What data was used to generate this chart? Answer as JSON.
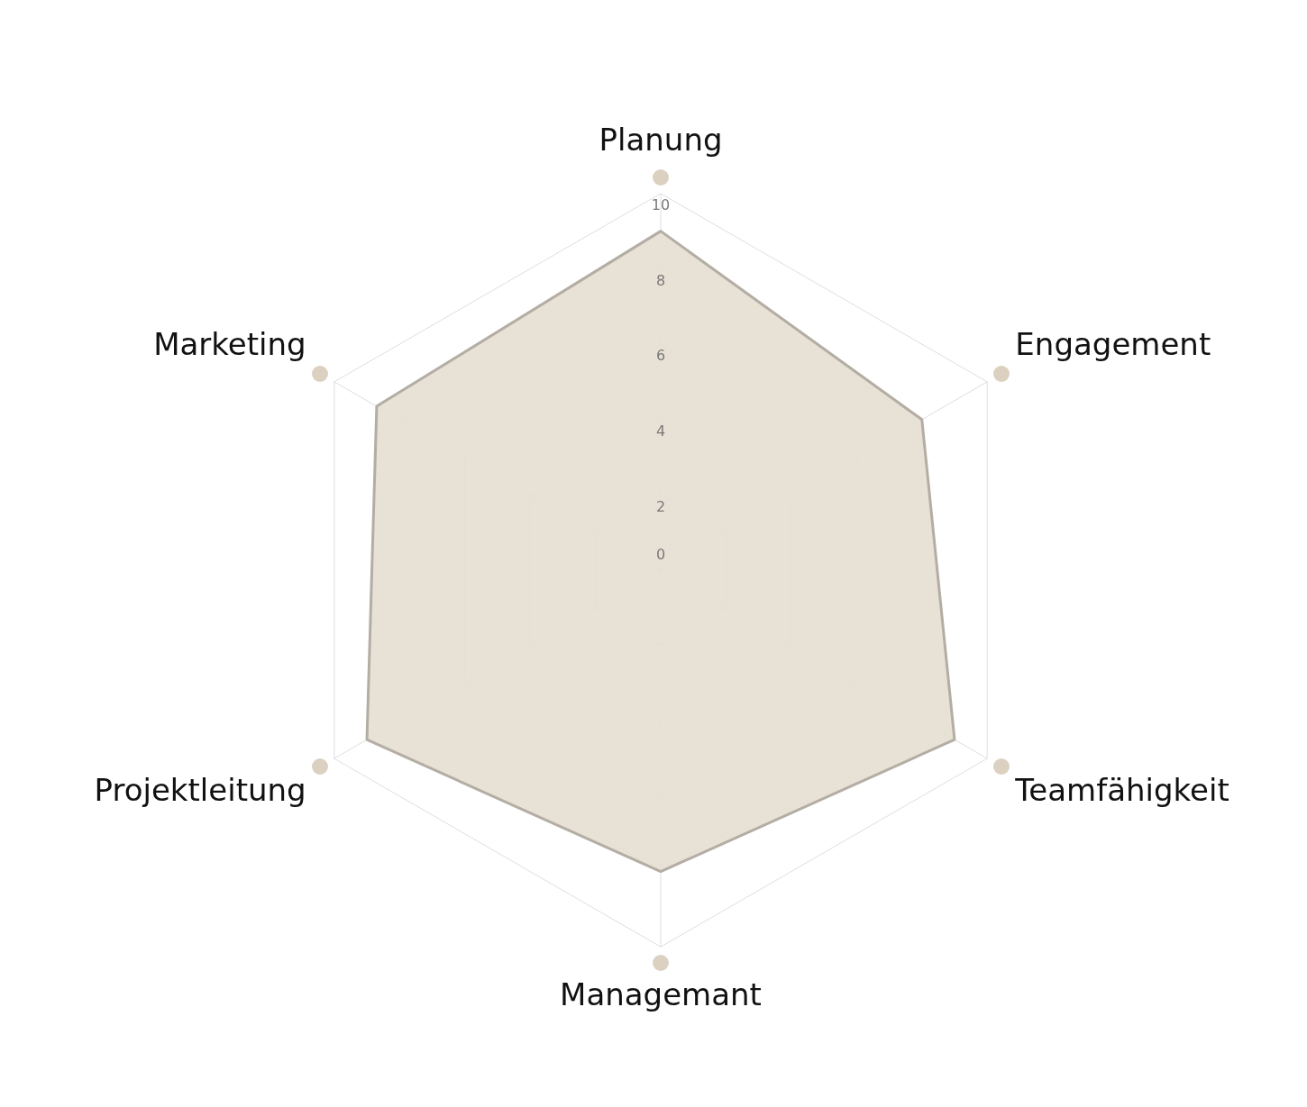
{
  "chart_data": {
    "type": "radar",
    "categories": [
      "Planung",
      "Engagement",
      "Teamfähigkeit",
      "Managemant",
      "Projektleitung",
      "Marketing"
    ],
    "series": [
      {
        "color": "#e6ded2",
        "values": [
          9,
          8,
          9,
          8,
          9,
          8.7
        ]
      }
    ],
    "ylim": [
      0,
      10
    ],
    "yticks": [
      0,
      2,
      4,
      6,
      8,
      10
    ],
    "grid": true,
    "marker": "none"
  }
}
